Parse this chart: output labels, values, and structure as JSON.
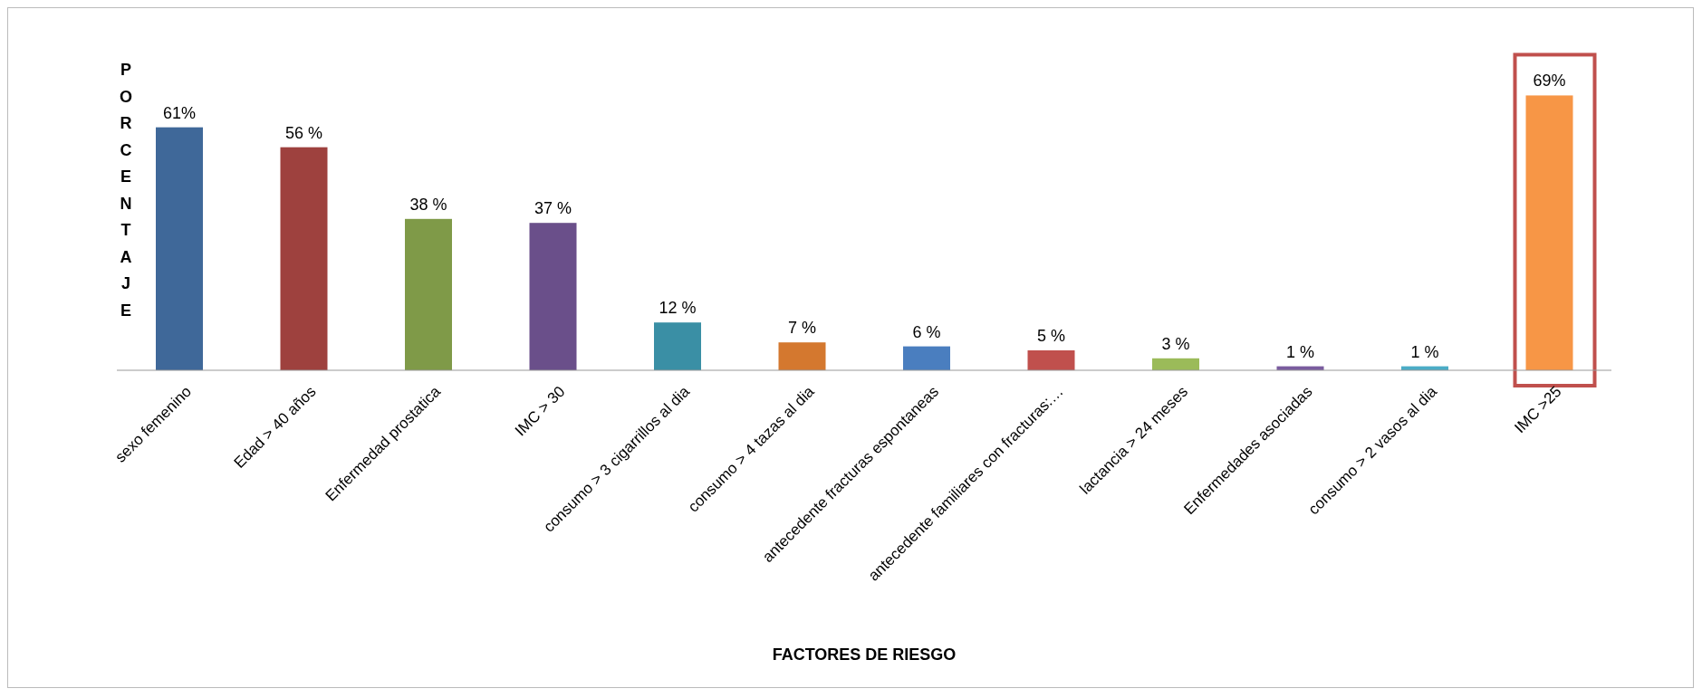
{
  "chart_data": {
    "type": "bar",
    "xlabel": "FACTORES DE RIESGO",
    "ylabel": "PORCENTAJE",
    "categories": [
      "sexo femenino",
      "Edad > 40 años",
      "Enfermedad prostatica",
      "IMC > 30",
      "consumo > 3 cigarrillos al dia",
      "consumo > 4 tazas al dia",
      "antecedente fracturas espontaneas",
      "antecedente familiares con fracturas:…",
      "lactancia > 24 meses",
      "Enfermedades asociadas",
      "consumo > 2 vasos al dia",
      "IMC >25"
    ],
    "values": [
      61,
      56,
      38,
      37,
      12,
      7,
      6,
      5,
      3,
      1,
      1,
      69
    ],
    "colors": [
      "#3f6899",
      "#9e413e",
      "#7f9a48",
      "#6a4f8a",
      "#3a8fa5",
      "#d4782f",
      "#4a7ebf",
      "#c0504d",
      "#9bbb59",
      "#7a5c9f",
      "#4bacc6",
      "#f79646"
    ],
    "value_labels": [
      "61%",
      "56 %",
      "38 %",
      "37 %",
      "12 %",
      "7 %",
      "6 %",
      "5 %",
      "3 %",
      "1 %",
      "1 %",
      "69%"
    ],
    "tick_labels": "x"
  }
}
